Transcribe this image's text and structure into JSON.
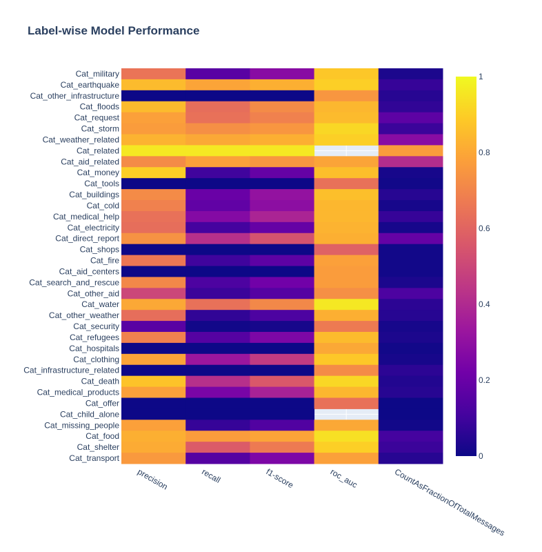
{
  "chart_data": {
    "type": "heatmap",
    "title": "Label-wise Model Performance",
    "colorscale": [
      "#0d0887",
      "#46039f",
      "#7201a8",
      "#9c179e",
      "#bd3786",
      "#d8576b",
      "#ed7953",
      "#fb9f3a",
      "#fdca26",
      "#f0f921"
    ],
    "zlim": [
      0,
      1
    ],
    "colorbar_ticks": [
      "0",
      "0.2",
      "0.4",
      "0.6",
      "0.8",
      "1"
    ],
    "colorbar_tick_values": [
      0,
      0.2,
      0.4,
      0.6,
      0.8,
      1
    ],
    "x": [
      "precision",
      "recall",
      "f1-score",
      "roc_auc",
      "CountAsFractionOfTotalMessages"
    ],
    "y": [
      "Cat_military",
      "Cat_earthquake",
      "Cat_other_infrastructure",
      "Cat_floods",
      "Cat_request",
      "Cat_storm",
      "Cat_weather_related",
      "Cat_related",
      "Cat_aid_related",
      "Cat_money",
      "Cat_tools",
      "Cat_buildings",
      "Cat_cold",
      "Cat_medical_help",
      "Cat_electricity",
      "Cat_direct_report",
      "Cat_shops",
      "Cat_fire",
      "Cat_aid_centers",
      "Cat_search_and_rescue",
      "Cat_other_aid",
      "Cat_water",
      "Cat_other_weather",
      "Cat_security",
      "Cat_refugees",
      "Cat_hospitals",
      "Cat_clothing",
      "Cat_infrastructure_related",
      "Cat_death",
      "Cat_medical_products",
      "Cat_offer",
      "Cat_child_alone",
      "Cat_missing_people",
      "Cat_food",
      "Cat_shelter",
      "Cat_transport"
    ],
    "z": [
      [
        0.65,
        0.16,
        0.28,
        0.88,
        0.03
      ],
      [
        0.85,
        0.79,
        0.82,
        0.9,
        0.08
      ],
      [
        0.0,
        0.0,
        0.0,
        0.75,
        0.05
      ],
      [
        0.85,
        0.63,
        0.72,
        0.84,
        0.07
      ],
      [
        0.78,
        0.64,
        0.69,
        0.85,
        0.17
      ],
      [
        0.77,
        0.73,
        0.75,
        0.92,
        0.09
      ],
      [
        0.83,
        0.8,
        0.82,
        0.9,
        0.28
      ],
      [
        0.96,
        0.96,
        0.96,
        null,
        0.77
      ],
      [
        0.72,
        0.78,
        0.75,
        0.79,
        0.41
      ],
      [
        0.9,
        0.1,
        0.19,
        0.86,
        0.02
      ],
      [
        0.0,
        0.0,
        0.0,
        0.64,
        0.01
      ],
      [
        0.72,
        0.2,
        0.31,
        0.86,
        0.05
      ],
      [
        0.69,
        0.18,
        0.29,
        0.84,
        0.02
      ],
      [
        0.64,
        0.27,
        0.38,
        0.84,
        0.08
      ],
      [
        0.63,
        0.11,
        0.19,
        0.83,
        0.02
      ],
      [
        0.74,
        0.42,
        0.54,
        0.82,
        0.19
      ],
      [
        0.0,
        0.0,
        0.0,
        0.59,
        0.01
      ],
      [
        0.66,
        0.1,
        0.17,
        0.78,
        0.01
      ],
      [
        0.0,
        0.0,
        0.0,
        0.77,
        0.01
      ],
      [
        0.71,
        0.13,
        0.22,
        0.77,
        0.03
      ],
      [
        0.5,
        0.09,
        0.15,
        0.73,
        0.13
      ],
      [
        0.8,
        0.64,
        0.71,
        0.96,
        0.06
      ],
      [
        0.63,
        0.07,
        0.13,
        0.82,
        0.05
      ],
      [
        0.16,
        0.01,
        0.02,
        0.67,
        0.02
      ],
      [
        0.69,
        0.15,
        0.25,
        0.85,
        0.03
      ],
      [
        0.0,
        0.0,
        0.0,
        0.8,
        0.01
      ],
      [
        0.79,
        0.33,
        0.46,
        0.88,
        0.02
      ],
      [
        0.0,
        0.0,
        0.0,
        0.72,
        0.06
      ],
      [
        0.87,
        0.42,
        0.56,
        0.92,
        0.04
      ],
      [
        0.78,
        0.24,
        0.37,
        0.84,
        0.05
      ],
      [
        0.0,
        0.0,
        0.0,
        0.64,
        0.0
      ],
      [
        0.0,
        0.0,
        0.0,
        null,
        0.0
      ],
      [
        0.78,
        0.08,
        0.14,
        0.8,
        0.01
      ],
      [
        0.82,
        0.77,
        0.79,
        0.94,
        0.11
      ],
      [
        0.81,
        0.57,
        0.67,
        0.9,
        0.09
      ],
      [
        0.76,
        0.15,
        0.25,
        0.78,
        0.05
      ]
    ]
  }
}
